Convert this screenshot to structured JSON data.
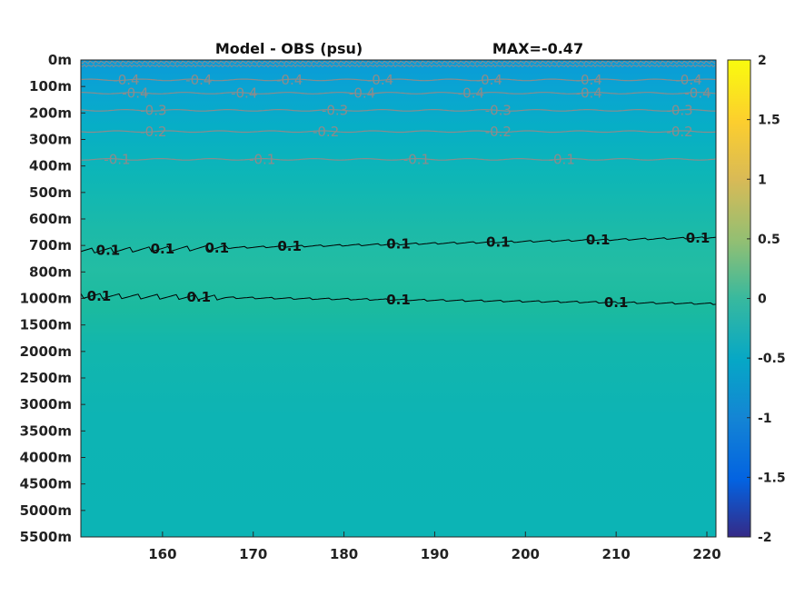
{
  "chart_data": {
    "type": "heatmap",
    "title": "Model - OBS (psu)",
    "subtitle": "MAX=-0.47",
    "xlabel": "",
    "ylabel": "",
    "x_ticks": [
      160,
      170,
      180,
      190,
      200,
      210,
      220
    ],
    "xlim": [
      151,
      221
    ],
    "y_ticks": [
      "0m",
      "100m",
      "200m",
      "300m",
      "400m",
      "500m",
      "600m",
      "700m",
      "800m",
      "1000m",
      "1500m",
      "2000m",
      "2500m",
      "3000m",
      "3500m",
      "4000m",
      "4500m",
      "5000m",
      "5500m"
    ],
    "colorbar": {
      "ticks": [
        "2",
        "1.5",
        "1",
        "0.5",
        "0",
        "-0.5",
        "-1",
        "-1.5",
        "-2"
      ],
      "range": [
        -2,
        2
      ],
      "colormap": "parula"
    },
    "contours": [
      {
        "level": "-0.4",
        "color": "#8c8c8c",
        "depth_index": 0.75,
        "label_x": [
          156,
          164,
          174,
          184,
          196,
          207,
          218
        ]
      },
      {
        "level": "-0.4",
        "color": "#8c8c8c",
        "depth_index": 1.25,
        "label_x": [
          157,
          169,
          182,
          194,
          207,
          219
        ]
      },
      {
        "level": "-0.3",
        "color": "#8c8c8c",
        "depth_index": 1.9,
        "label_x": [
          159,
          179,
          197,
          217
        ]
      },
      {
        "level": "-0.2",
        "color": "#8c8c8c",
        "depth_index": 2.7,
        "label_x": [
          159,
          178,
          197,
          217
        ]
      },
      {
        "level": "-0.1",
        "color": "#8c8c8c",
        "depth_index": 3.75,
        "label_x": [
          155,
          171,
          188,
          204
        ]
      },
      {
        "level": "0.1",
        "color": "#000000",
        "depth_index_start": 7.2,
        "depth_index_end": 6.7,
        "label_x": [
          154,
          160,
          166,
          174,
          186,
          197,
          208,
          219
        ]
      },
      {
        "level": "0.1",
        "color": "#000000",
        "depth_index_start": 8.9,
        "depth_index_end": 9.2,
        "label_x": [
          153,
          164,
          186,
          210
        ]
      }
    ]
  }
}
